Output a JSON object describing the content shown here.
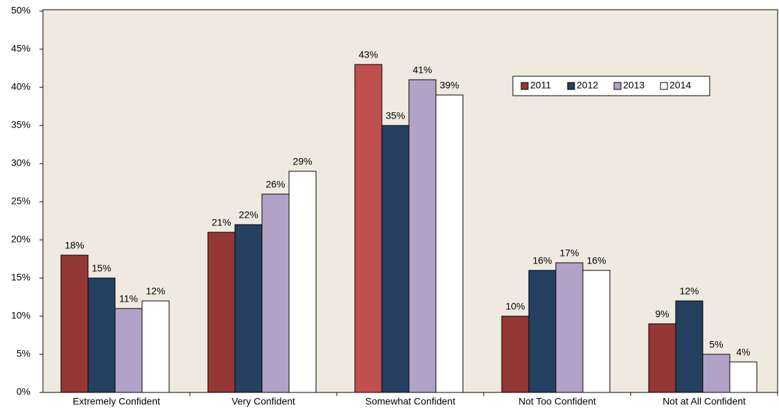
{
  "chart_data": {
    "type": "bar",
    "categories": [
      "Extremely Confident",
      "Very Confident",
      "Somewhat Confident",
      "Not Too Confident",
      "Not at All Confident"
    ],
    "series": [
      {
        "name": "2011",
        "color": "#953735",
        "colors": [
          "#953735",
          "#953735",
          "#c0504d",
          "#953735",
          "#953735"
        ],
        "values": [
          18,
          21,
          43,
          10,
          9
        ],
        "value_labels": [
          "18%",
          "21%",
          "43%",
          "10%",
          "9%"
        ]
      },
      {
        "name": "2012",
        "color": "#254061",
        "values": [
          15,
          22,
          35,
          16,
          12
        ],
        "value_labels": [
          "15%",
          "22%",
          "35%",
          "16%",
          "12%"
        ]
      },
      {
        "name": "2013",
        "color": "#b3a2c7",
        "values": [
          11,
          26,
          41,
          17,
          5
        ],
        "value_labels": [
          "11%",
          "26%",
          "41%",
          "17%",
          "5%"
        ]
      },
      {
        "name": "2014",
        "color": "#ffffff",
        "values": [
          12,
          29,
          39,
          16,
          4
        ],
        "value_labels": [
          "12%",
          "29%",
          "39%",
          "16%",
          "4%"
        ]
      }
    ],
    "ylim": [
      0,
      50
    ],
    "yticks": [
      {
        "value": 0,
        "label": "0%"
      },
      {
        "value": 5,
        "label": "5%"
      },
      {
        "value": 10,
        "label": "10%"
      },
      {
        "value": 15,
        "label": "15%"
      },
      {
        "value": 20,
        "label": "20%"
      },
      {
        "value": 25,
        "label": "25%"
      },
      {
        "value": 30,
        "label": "30%"
      },
      {
        "value": 35,
        "label": "35%"
      },
      {
        "value": 40,
        "label": "40%"
      },
      {
        "value": 45,
        "label": "45%"
      },
      {
        "value": 50,
        "label": "50%"
      }
    ],
    "legend": "upper right",
    "plot_background": "#eeeae0"
  }
}
